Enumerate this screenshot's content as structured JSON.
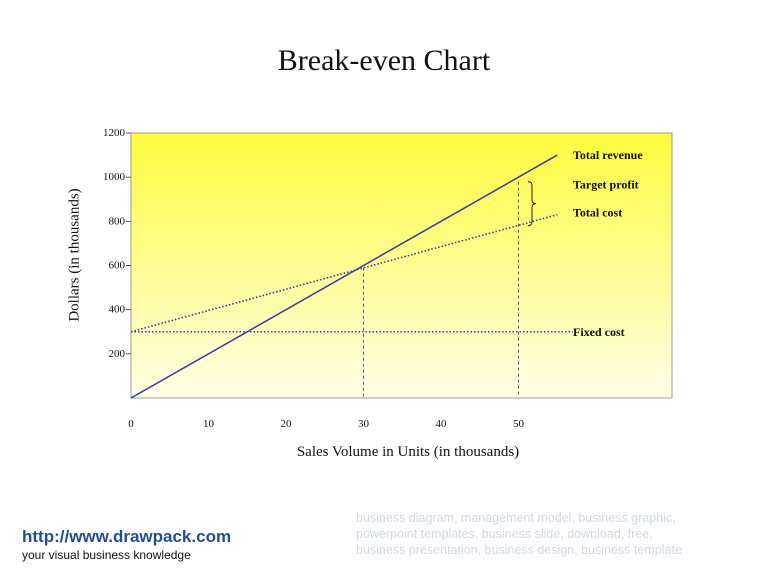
{
  "chart_data": {
    "type": "line",
    "title": "Break-even Chart",
    "xlabel": "Sales Volume in Units (in thousands)",
    "ylabel": "Dollars (in thousands)",
    "xlim": [
      0,
      70
    ],
    "ylim": [
      0,
      1200
    ],
    "xticks": [
      0,
      10,
      20,
      30,
      40,
      50
    ],
    "yticks": [
      200,
      400,
      600,
      800,
      1000,
      1200
    ],
    "series": [
      {
        "name": "Total revenue",
        "style": "solid",
        "color": "#3a3aa8",
        "x": [
          0,
          55
        ],
        "y": [
          0,
          1100
        ]
      },
      {
        "name": "Total cost",
        "style": "dotted",
        "color": "#3a3aa8",
        "x": [
          0,
          55
        ],
        "y": [
          300,
          830
        ]
      },
      {
        "name": "Fixed cost",
        "style": "dotted",
        "color": "#3a3aa8",
        "x": [
          0,
          57
        ],
        "y": [
          300,
          300
        ]
      }
    ],
    "annotations": [
      {
        "label": "Target profit",
        "x": 50,
        "from": 780,
        "to": 980
      },
      {
        "type": "vline",
        "x": 30,
        "y": 590
      },
      {
        "type": "vline",
        "x": 50,
        "y": 980
      }
    ],
    "background": {
      "top": "#fdfc3c",
      "bottom": "#fefee6"
    }
  },
  "footer": {
    "url": "http://www.drawpack.com",
    "tagline": "your visual business knowledge"
  },
  "watermark": [
    "business diagram, management model, business graphic,",
    "powerpoint templates, business slide, download, free,",
    "business presentation, business design, business template"
  ]
}
